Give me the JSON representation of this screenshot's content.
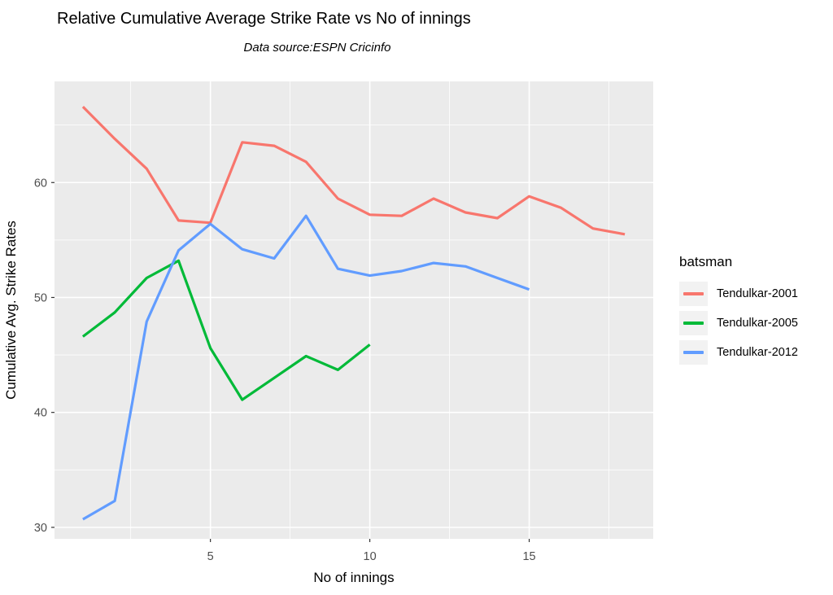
{
  "chart_data": {
    "type": "line",
    "title": "Relative Cumulative Average Strike Rate vs No of innings",
    "subtitle": "Data source:ESPN Cricinfo",
    "xlabel": "No of innings",
    "ylabel": "Cumulative Avg. Strike Rates",
    "legend_title": "batsman",
    "legend_position": "right",
    "grid": true,
    "x_domain": [
      0.11,
      18.89
    ],
    "y_domain": [
      29.0,
      68.8
    ],
    "x_ticks": [
      5,
      10,
      15
    ],
    "x_minor_ticks": [
      2.5,
      7.5,
      12.5,
      17.5
    ],
    "y_ticks": [
      30,
      40,
      50,
      60
    ],
    "y_minor_ticks": [
      35,
      45,
      55,
      65
    ],
    "series": [
      {
        "name": "Tendulkar-2001",
        "color": "#F8766D",
        "x": [
          1,
          2,
          3,
          4,
          5,
          6,
          7,
          8,
          9,
          10,
          11,
          12,
          13,
          14,
          15,
          16,
          17,
          18
        ],
        "values": [
          66.6,
          63.8,
          61.2,
          56.7,
          56.5,
          63.5,
          63.2,
          61.8,
          58.6,
          57.2,
          57.1,
          58.6,
          57.4,
          56.9,
          58.8,
          57.8,
          56.0,
          55.5
        ]
      },
      {
        "name": "Tendulkar-2005",
        "color": "#00BA38",
        "x": [
          1,
          2,
          3,
          4,
          5,
          6,
          7,
          8,
          9,
          10
        ],
        "values": [
          46.6,
          48.7,
          51.7,
          53.2,
          45.6,
          41.1,
          43.0,
          44.9,
          43.7,
          45.9
        ]
      },
      {
        "name": "Tendulkar-2012",
        "color": "#619CFF",
        "x": [
          1,
          2,
          3,
          4,
          5,
          6,
          7,
          8,
          9,
          10,
          11,
          12,
          13,
          14,
          15
        ],
        "values": [
          30.7,
          32.3,
          47.9,
          54.1,
          56.4,
          54.2,
          53.4,
          57.1,
          52.5,
          51.9,
          52.3,
          53.0,
          52.7,
          51.7,
          50.7
        ]
      }
    ]
  },
  "colors": {
    "background": "#FFFFFF",
    "panel_bg": "#EBEBEB",
    "grid_major": "#FFFFFF",
    "grid_minor": "#FFFFFF",
    "tick_mark": "#333333",
    "tick_label": "#4D4D4D",
    "legend_key_bg": "#F2F2F2"
  }
}
